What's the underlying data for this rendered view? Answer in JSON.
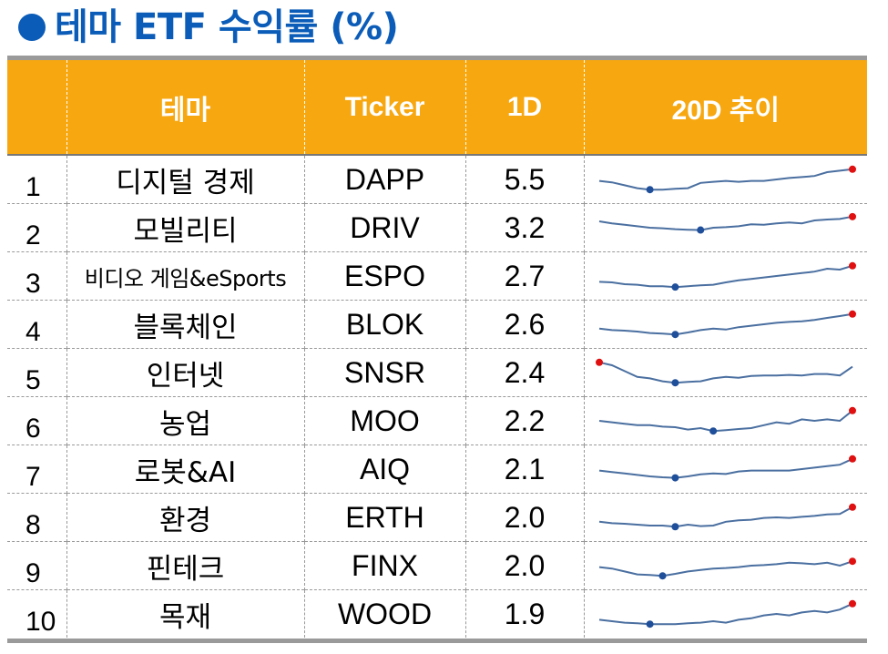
{
  "title": "테마 ETF 수익률 (%)",
  "header": {
    "rank": "",
    "theme": "테마",
    "ticker": "Ticker",
    "d1": "1D",
    "trend": "20D 추이"
  },
  "colors": {
    "title": "#0b5cb8",
    "header_bg": "#f7a70f",
    "spark_line": "#4a6fa0",
    "spark_min": "#1f4f9a",
    "spark_max": "#e01010"
  },
  "chart_data": {
    "type": "table",
    "columns": [
      "",
      "테마",
      "Ticker",
      "1D",
      "20D 추이"
    ],
    "rows": [
      {
        "rank": "1",
        "theme": "디지털 경제",
        "ticker": "DAPP",
        "d1": "5.5",
        "spark": [
          0.45,
          0.4,
          0.3,
          0.2,
          0.15,
          0.15,
          0.18,
          0.2,
          0.38,
          0.42,
          0.45,
          0.42,
          0.45,
          0.45,
          0.5,
          0.55,
          0.58,
          0.62,
          0.75,
          0.8,
          0.85
        ]
      },
      {
        "rank": "2",
        "theme": "모빌리티",
        "ticker": "DRIV",
        "d1": "3.2",
        "spark": [
          0.72,
          0.65,
          0.6,
          0.55,
          0.5,
          0.48,
          0.45,
          0.43,
          0.42,
          0.5,
          0.52,
          0.55,
          0.62,
          0.6,
          0.65,
          0.68,
          0.65,
          0.75,
          0.78,
          0.8,
          0.88
        ]
      },
      {
        "rank": "3",
        "theme": "비디오 게임&eSports",
        "ticker": "ESPO",
        "d1": "2.7",
        "spark": [
          0.3,
          0.28,
          0.22,
          0.2,
          0.15,
          0.15,
          0.12,
          0.15,
          0.18,
          0.2,
          0.28,
          0.35,
          0.4,
          0.45,
          0.5,
          0.55,
          0.6,
          0.65,
          0.75,
          0.72,
          0.85
        ]
      },
      {
        "rank": "4",
        "theme": "블록체인",
        "ticker": "BLOK",
        "d1": "2.6",
        "spark": [
          0.35,
          0.3,
          0.28,
          0.25,
          0.2,
          0.18,
          0.15,
          0.22,
          0.3,
          0.35,
          0.32,
          0.4,
          0.45,
          0.5,
          0.55,
          0.58,
          0.6,
          0.65,
          0.72,
          0.78,
          0.85
        ]
      },
      {
        "rank": "5",
        "theme": "인터넷",
        "ticker": "SNSR",
        "d1": "2.4",
        "spark": [
          0.85,
          0.75,
          0.55,
          0.35,
          0.3,
          0.2,
          0.15,
          0.18,
          0.2,
          0.3,
          0.35,
          0.32,
          0.38,
          0.4,
          0.4,
          0.42,
          0.4,
          0.45,
          0.45,
          0.4,
          0.7
        ]
      },
      {
        "rank": "6",
        "theme": "농업",
        "ticker": "MOO",
        "d1": "2.2",
        "spark": [
          0.5,
          0.45,
          0.4,
          0.35,
          0.35,
          0.3,
          0.28,
          0.2,
          0.25,
          0.15,
          0.18,
          0.22,
          0.25,
          0.35,
          0.45,
          0.4,
          0.55,
          0.5,
          0.55,
          0.5,
          0.85
        ]
      },
      {
        "rank": "7",
        "theme": "로봇&AI",
        "ticker": "AIQ",
        "d1": "2.1",
        "spark": [
          0.45,
          0.4,
          0.35,
          0.3,
          0.25,
          0.22,
          0.2,
          0.25,
          0.32,
          0.35,
          0.33,
          0.42,
          0.45,
          0.45,
          0.45,
          0.45,
          0.5,
          0.55,
          0.6,
          0.65,
          0.85
        ]
      },
      {
        "rank": "8",
        "theme": "환경",
        "ticker": "ERTH",
        "d1": "2.0",
        "spark": [
          0.35,
          0.3,
          0.28,
          0.25,
          0.22,
          0.22,
          0.18,
          0.25,
          0.2,
          0.22,
          0.35,
          0.4,
          0.42,
          0.48,
          0.5,
          0.48,
          0.52,
          0.55,
          0.6,
          0.62,
          0.85
        ]
      },
      {
        "rank": "9",
        "theme": "핀테크",
        "ticker": "FINX",
        "d1": "2.0",
        "spark": [
          0.45,
          0.4,
          0.3,
          0.2,
          0.18,
          0.15,
          0.22,
          0.3,
          0.35,
          0.4,
          0.42,
          0.45,
          0.5,
          0.52,
          0.55,
          0.6,
          0.58,
          0.55,
          0.6,
          0.5,
          0.65
        ]
      },
      {
        "rank": "10",
        "theme": "목재",
        "ticker": "WOOD",
        "d1": "1.9",
        "spark": [
          0.3,
          0.25,
          0.2,
          0.18,
          0.15,
          0.15,
          0.15,
          0.18,
          0.2,
          0.25,
          0.2,
          0.3,
          0.35,
          0.45,
          0.5,
          0.45,
          0.55,
          0.6,
          0.55,
          0.65,
          0.85
        ]
      }
    ]
  }
}
